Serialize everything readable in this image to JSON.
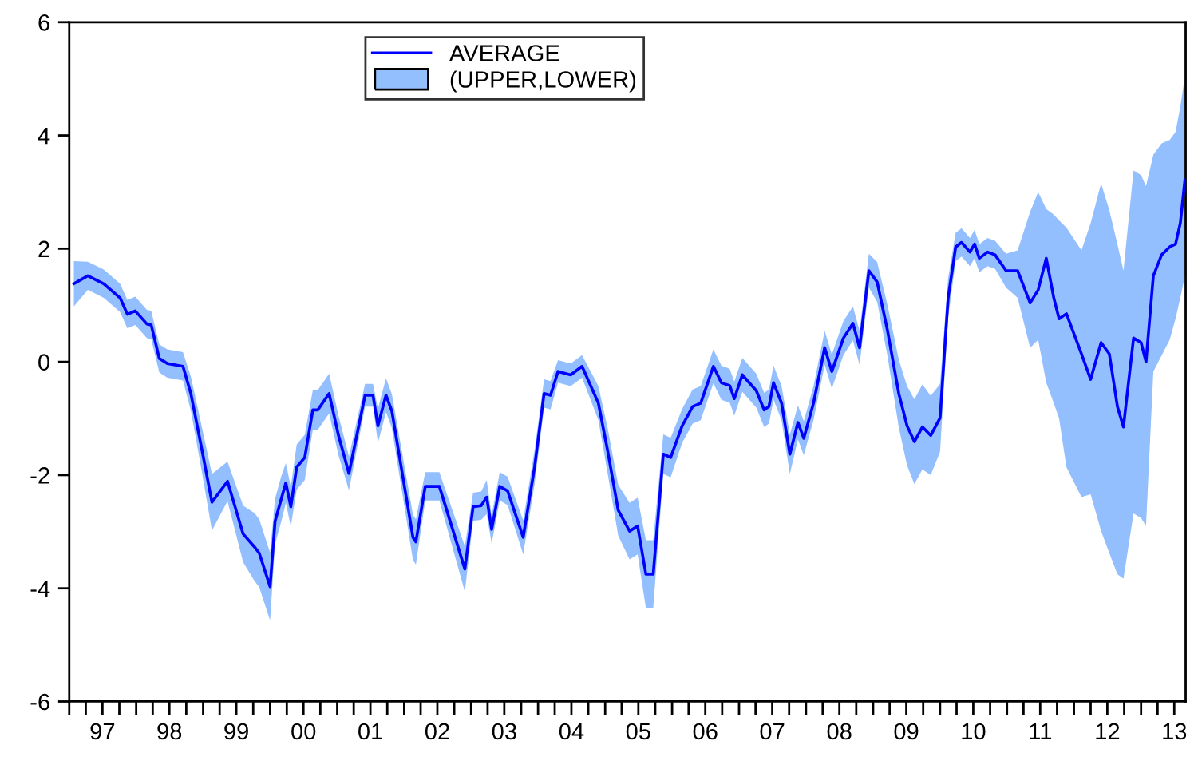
{
  "chart_data": {
    "type": "line",
    "x": [
      "1997-01-26",
      "1997-04-12",
      "1997-07-08",
      "1997-10-05",
      "1997-11-14",
      "1997-12-27",
      "1998-02-28",
      "1998-03-24",
      "1998-05-07",
      "1998-06-20",
      "1998-09-13",
      "1998-10-26",
      "1998-12-27",
      "1999-02-18",
      "1999-05-14",
      "1999-08-07",
      "1999-10-08",
      "1999-11-03",
      "2000-01-01",
      "2000-01-28",
      "2000-03-02",
      "2000-03-27",
      "2000-04-23",
      "2000-05-25",
      "2000-07-08",
      "2000-08-21",
      "2000-09-17",
      "2000-11-18",
      "2001-01-08",
      "2001-03-06",
      "2001-06-02",
      "2001-07-15",
      "2001-08-11",
      "2001-09-24",
      "2001-10-26",
      "2002-02-18",
      "2002-03-06",
      "2002-04-26",
      "2002-07-12",
      "2002-11-28",
      "2003-01-12",
      "2003-02-25",
      "2003-03-27",
      "2003-04-23",
      "2003-06-06",
      "2003-07-19",
      "2003-10-12",
      "2003-12-13",
      "2004-02-03",
      "2004-03-09",
      "2004-04-19",
      "2004-06-27",
      "2004-08-28",
      "2004-11-25",
      "2005-01-15",
      "2005-03-13",
      "2005-05-14",
      "2005-06-27",
      "2005-08-11",
      "2005-09-20",
      "2005-11-14",
      "2005-12-24",
      "2006-02-25",
      "2006-04-23",
      "2006-06-06",
      "2006-08-14",
      "2006-09-27",
      "2006-11-11",
      "2006-12-06",
      "2007-01-19",
      "2007-04-05",
      "2007-05-18",
      "2007-06-13",
      "2007-07-08",
      "2007-08-21",
      "2007-10-05",
      "2007-11-18",
      "2007-12-20",
      "2008-02-11",
      "2008-04-12",
      "2008-05-21",
      "2008-07-23",
      "2008-09-13",
      "2008-10-19",
      "2008-12-09",
      "2009-01-23",
      "2009-03-20",
      "2009-05-21",
      "2009-07-05",
      "2009-08-14",
      "2009-09-27",
      "2009-11-11",
      "2010-01-01",
      "2010-02-14",
      "2010-03-27",
      "2010-04-28",
      "2010-06-13",
      "2010-07-08",
      "2010-08-03",
      "2010-09-17",
      "2010-10-28",
      "2010-12-27",
      "2011-02-28",
      "2011-05-07",
      "2011-06-20",
      "2011-08-03",
      "2011-09-13",
      "2011-10-12",
      "2011-11-21",
      "2012-02-11",
      "2012-04-01",
      "2012-05-28",
      "2012-07-12",
      "2012-08-25",
      "2012-09-27",
      "2012-11-21",
      "2013-01-01",
      "2013-01-28",
      "2013-03-09",
      "2013-04-23",
      "2013-06-06",
      "2013-07-08",
      "2013-08-03",
      "2013-08-28"
    ],
    "series": [
      {
        "name": "AVERAGE",
        "color": "#0000ff",
        "values": [
          1.38,
          1.52,
          1.38,
          1.13,
          0.84,
          0.9,
          0.67,
          0.65,
          0.06,
          -0.03,
          -0.08,
          -0.56,
          -1.58,
          -2.48,
          -2.11,
          -3.04,
          -3.27,
          -3.38,
          -3.97,
          -2.82,
          -2.42,
          -2.14,
          -2.56,
          -1.86,
          -1.69,
          -0.85,
          -0.85,
          -0.56,
          -1.3,
          -1.97,
          -0.59,
          -0.59,
          -1.13,
          -0.59,
          -0.87,
          -3.1,
          -3.18,
          -2.2,
          -2.2,
          -3.66,
          -2.56,
          -2.54,
          -2.39,
          -2.96,
          -2.2,
          -2.28,
          -3.1,
          -1.86,
          -0.56,
          -0.59,
          -0.17,
          -0.23,
          -0.08,
          -0.73,
          -1.58,
          -2.62,
          -2.99,
          -2.9,
          -3.75,
          -3.75,
          -1.63,
          -1.69,
          -1.13,
          -0.79,
          -0.73,
          -0.08,
          -0.37,
          -0.42,
          -0.65,
          -0.23,
          -0.51,
          -0.85,
          -0.79,
          -0.37,
          -0.73,
          -1.63,
          -1.07,
          -1.35,
          -0.73,
          0.25,
          -0.17,
          0.42,
          0.68,
          0.25,
          1.61,
          1.41,
          0.56,
          -0.56,
          -1.13,
          -1.41,
          -1.15,
          -1.3,
          -0.99,
          1.13,
          2.03,
          2.11,
          1.94,
          2.08,
          1.83,
          1.94,
          1.89,
          1.61,
          1.61,
          1.04,
          1.27,
          1.83,
          1.13,
          0.76,
          0.85,
          0.14,
          -0.31,
          0.34,
          0.14,
          -0.79,
          -1.15,
          0.42,
          0.34,
          0.0,
          1.52,
          1.89,
          2.03,
          2.08,
          2.45,
          3.21
        ],
        "upper": [
          1.78,
          1.77,
          1.63,
          1.38,
          1.09,
          1.15,
          0.92,
          0.9,
          0.31,
          0.22,
          0.17,
          -0.26,
          -1.18,
          -1.98,
          -1.76,
          -2.54,
          -2.67,
          -2.78,
          -3.37,
          -2.42,
          -2.02,
          -1.79,
          -2.21,
          -1.46,
          -1.29,
          -0.5,
          -0.5,
          -0.21,
          -0.95,
          -1.67,
          -0.39,
          -0.39,
          -0.83,
          -0.29,
          -0.57,
          -2.7,
          -2.78,
          -1.95,
          -1.95,
          -3.26,
          -2.31,
          -2.29,
          -2.09,
          -2.71,
          -1.95,
          -2.03,
          -2.8,
          -1.56,
          -0.31,
          -0.34,
          0.03,
          -0.03,
          0.12,
          -0.43,
          -1.18,
          -2.17,
          -2.49,
          -2.4,
          -3.15,
          -3.15,
          -1.28,
          -1.34,
          -0.83,
          -0.49,
          -0.43,
          0.22,
          -0.07,
          -0.12,
          -0.35,
          0.07,
          -0.21,
          -0.55,
          -0.49,
          -0.07,
          -0.43,
          -1.28,
          -0.77,
          -1.05,
          -0.43,
          0.55,
          0.13,
          0.72,
          0.98,
          0.55,
          1.91,
          1.76,
          1.01,
          0.04,
          -0.43,
          -0.66,
          -0.4,
          -0.6,
          -0.39,
          1.48,
          2.28,
          2.36,
          2.19,
          2.33,
          2.08,
          2.19,
          2.14,
          1.91,
          1.97,
          2.65,
          3.0,
          2.7,
          2.6,
          2.5,
          2.37,
          1.97,
          2.45,
          3.15,
          2.68,
          2.08,
          1.61,
          3.38,
          3.3,
          3.1,
          3.66,
          3.86,
          3.92,
          4.06,
          4.51,
          5.04
        ],
        "lower": [
          0.98,
          1.27,
          1.13,
          0.88,
          0.59,
          0.65,
          0.42,
          0.4,
          -0.19,
          -0.28,
          -0.33,
          -0.86,
          -1.98,
          -2.98,
          -2.46,
          -3.54,
          -3.87,
          -3.98,
          -4.57,
          -3.22,
          -2.82,
          -2.49,
          -2.91,
          -2.26,
          -2.09,
          -1.2,
          -1.2,
          -0.91,
          -1.65,
          -2.27,
          -0.79,
          -0.79,
          -1.43,
          -0.89,
          -1.17,
          -3.5,
          -3.58,
          -2.45,
          -2.45,
          -4.06,
          -2.81,
          -2.79,
          -2.69,
          -3.21,
          -2.45,
          -2.53,
          -3.4,
          -2.16,
          -0.81,
          -0.84,
          -0.37,
          -0.43,
          -0.28,
          -1.03,
          -1.98,
          -3.07,
          -3.49,
          -3.4,
          -4.35,
          -4.35,
          -1.98,
          -2.04,
          -1.43,
          -1.09,
          -1.03,
          -0.38,
          -0.67,
          -0.72,
          -0.95,
          -0.53,
          -0.81,
          -1.15,
          -1.09,
          -0.67,
          -1.03,
          -1.98,
          -1.37,
          -1.65,
          -1.03,
          -0.05,
          -0.47,
          0.12,
          0.38,
          -0.05,
          1.31,
          1.06,
          0.11,
          -1.16,
          -1.83,
          -2.16,
          -1.9,
          -2.0,
          -1.59,
          0.78,
          1.78,
          1.86,
          1.69,
          1.83,
          1.58,
          1.69,
          1.64,
          1.31,
          1.13,
          0.25,
          0.39,
          -0.37,
          -0.73,
          -1.0,
          -1.86,
          -2.39,
          -2.34,
          -2.99,
          -3.38,
          -3.75,
          -3.83,
          -2.68,
          -2.76,
          -2.9,
          -0.17,
          0.11,
          0.39,
          0.76,
          1.13,
          1.52
        ]
      }
    ],
    "annotations": [
      "(UPPER,LOWER)"
    ],
    "xlim": [
      "1997-01-01",
      "2013-09-01"
    ],
    "xticks": [
      {
        "value": "1997-01-01",
        "label": null
      },
      {
        "value": "1997-04-01",
        "label": null
      },
      {
        "value": "1997-07-01",
        "label": "97"
      },
      {
        "value": "1997-10-01",
        "label": null
      },
      {
        "value": "1998-01-01",
        "label": null
      },
      {
        "value": "1998-04-01",
        "label": null
      },
      {
        "value": "1998-07-01",
        "label": "98"
      },
      {
        "value": "1998-10-01",
        "label": null
      },
      {
        "value": "1999-01-01",
        "label": null
      },
      {
        "value": "1999-04-01",
        "label": null
      },
      {
        "value": "1999-07-01",
        "label": "99"
      },
      {
        "value": "1999-10-01",
        "label": null
      },
      {
        "value": "2000-01-01",
        "label": null
      },
      {
        "value": "2000-04-01",
        "label": null
      },
      {
        "value": "2000-07-01",
        "label": "00"
      },
      {
        "value": "2000-10-01",
        "label": null
      },
      {
        "value": "2001-01-01",
        "label": null
      },
      {
        "value": "2001-04-01",
        "label": null
      },
      {
        "value": "2001-07-01",
        "label": "01"
      },
      {
        "value": "2001-10-01",
        "label": null
      },
      {
        "value": "2002-01-01",
        "label": null
      },
      {
        "value": "2002-04-01",
        "label": null
      },
      {
        "value": "2002-07-01",
        "label": "02"
      },
      {
        "value": "2002-10-01",
        "label": null
      },
      {
        "value": "2003-01-01",
        "label": null
      },
      {
        "value": "2003-04-01",
        "label": null
      },
      {
        "value": "2003-07-01",
        "label": "03"
      },
      {
        "value": "2003-10-01",
        "label": null
      },
      {
        "value": "2004-01-01",
        "label": null
      },
      {
        "value": "2004-04-01",
        "label": null
      },
      {
        "value": "2004-07-01",
        "label": "04"
      },
      {
        "value": "2004-10-01",
        "label": null
      },
      {
        "value": "2005-01-01",
        "label": null
      },
      {
        "value": "2005-04-01",
        "label": null
      },
      {
        "value": "2005-07-01",
        "label": "05"
      },
      {
        "value": "2005-10-01",
        "label": null
      },
      {
        "value": "2006-01-01",
        "label": null
      },
      {
        "value": "2006-04-01",
        "label": null
      },
      {
        "value": "2006-07-01",
        "label": "06"
      },
      {
        "value": "2006-10-01",
        "label": null
      },
      {
        "value": "2007-01-01",
        "label": null
      },
      {
        "value": "2007-04-01",
        "label": null
      },
      {
        "value": "2007-07-01",
        "label": "07"
      },
      {
        "value": "2007-10-01",
        "label": null
      },
      {
        "value": "2008-01-01",
        "label": null
      },
      {
        "value": "2008-04-01",
        "label": null
      },
      {
        "value": "2008-07-01",
        "label": "08"
      },
      {
        "value": "2008-10-01",
        "label": null
      },
      {
        "value": "2009-01-01",
        "label": null
      },
      {
        "value": "2009-04-01",
        "label": null
      },
      {
        "value": "2009-07-01",
        "label": "09"
      },
      {
        "value": "2009-10-01",
        "label": null
      },
      {
        "value": "2010-01-01",
        "label": null
      },
      {
        "value": "2010-04-01",
        "label": null
      },
      {
        "value": "2010-07-01",
        "label": "10"
      },
      {
        "value": "2010-10-01",
        "label": null
      },
      {
        "value": "2011-01-01",
        "label": null
      },
      {
        "value": "2011-04-01",
        "label": null
      },
      {
        "value": "2011-07-01",
        "label": "11"
      },
      {
        "value": "2011-10-01",
        "label": null
      },
      {
        "value": "2012-01-01",
        "label": null
      },
      {
        "value": "2012-04-01",
        "label": null
      },
      {
        "value": "2012-07-01",
        "label": "12"
      },
      {
        "value": "2012-10-01",
        "label": null
      },
      {
        "value": "2013-01-01",
        "label": null
      },
      {
        "value": "2013-04-01",
        "label": null
      },
      {
        "value": "2013-07-01",
        "label": "13"
      }
    ],
    "ylim": [
      -6,
      6
    ],
    "yticks": [
      -6,
      -4,
      -2,
      0,
      2,
      4,
      6
    ],
    "legend": "top",
    "grid": false,
    "marker": "none",
    "line_style": "solid"
  }
}
